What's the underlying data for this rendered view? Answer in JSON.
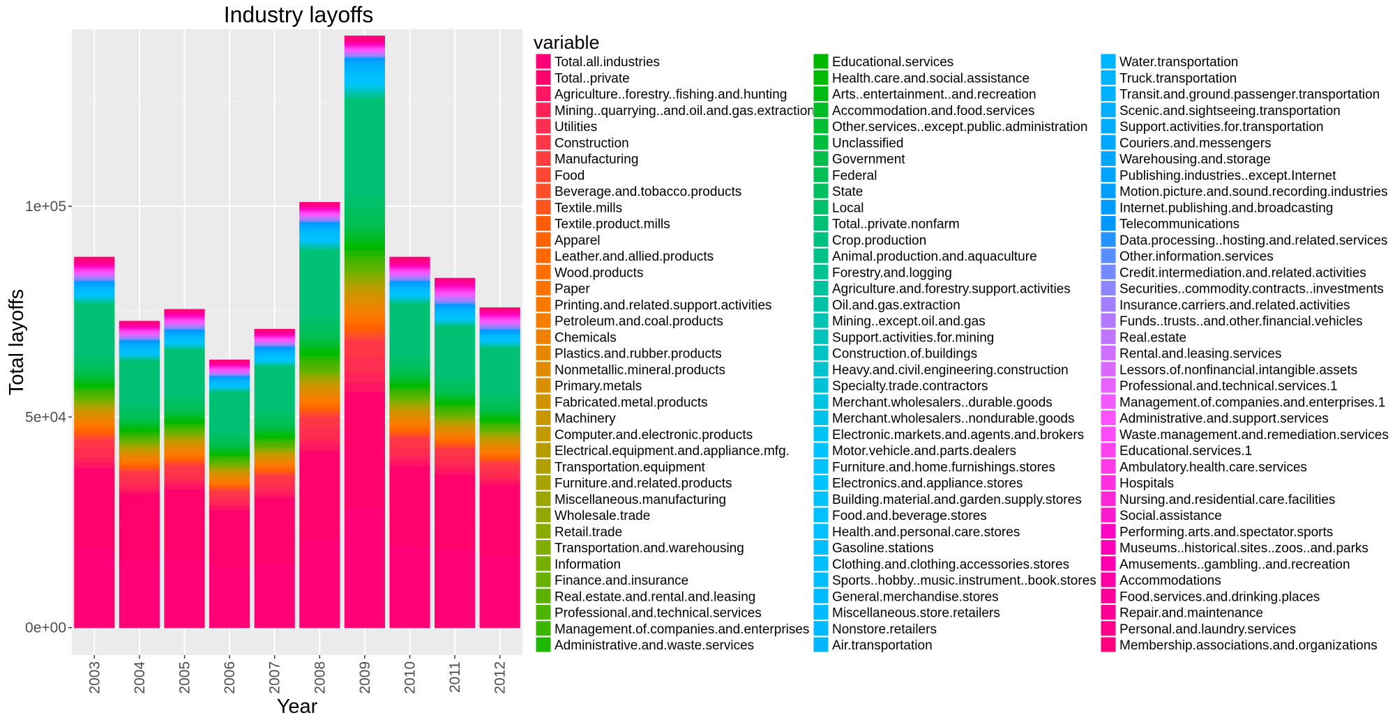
{
  "chart_data": {
    "type": "bar",
    "stacked": true,
    "title": "Industry layoffs",
    "xlabel": "Year",
    "ylabel": "Total layoffs",
    "ylim": [
      -6500,
      142000
    ],
    "yticks": [
      0,
      50000,
      100000
    ],
    "ytick_labels": [
      "0e+00",
      "5e+04",
      "1e+05"
    ],
    "grid": true,
    "legend_position": "right",
    "legend_title": "variable",
    "categories": [
      "2003",
      "2004",
      "2005",
      "2006",
      "2007",
      "2008",
      "2009",
      "2010",
      "2011",
      "2012"
    ],
    "totals": [
      91500,
      76800,
      79600,
      67600,
      75400,
      103000,
      135500,
      93500,
      88500,
      82000
    ],
    "series_names": [
      "Total.all.industries",
      "Total..private",
      "Agriculture..forestry..fishing.and.hunting",
      "Mining..quarrying..and.oil.and.gas.extraction",
      "Utilities",
      "Construction",
      "Manufacturing",
      "Food",
      "Beverage.and.tobacco.products",
      "Textile.mills",
      "Textile.product.mills",
      "Apparel",
      "Leather.and.allied.products",
      "Wood.products",
      "Paper",
      "Printing.and.related.support.activities",
      "Petroleum.and.coal.products",
      "Chemicals",
      "Plastics.and.rubber.products",
      "Nonmetallic.mineral.products",
      "Primary.metals",
      "Fabricated.metal.products",
      "Machinery",
      "Computer.and.electronic.products",
      "Electrical.equipment.and.appliance.mfg.",
      "Transportation.equipment",
      "Furniture.and.related.products",
      "Miscellaneous.manufacturing",
      "Wholesale.trade",
      "Retail.trade",
      "Transportation.and.warehousing",
      "Information",
      "Finance.and.insurance",
      "Real.estate.and.rental.and.leasing",
      "Professional.and.technical.services",
      "Management.of.companies.and.enterprises",
      "Administrative.and.waste.services",
      "Educational.services",
      "Health.care.and.social.assistance",
      "Arts..entertainment..and.recreation",
      "Accommodation.and.food.services",
      "Other.services..except.public.administration",
      "Unclassified",
      "Government",
      "Federal",
      "State",
      "Local",
      "Total..private.nonfarm",
      "Crop.production",
      "Animal.production.and.aquaculture",
      "Forestry.and.logging",
      "Agriculture.and.forestry.support.activities",
      "Oil.and.gas.extraction",
      "Mining..except.oil.and.gas",
      "Support.activities.for.mining",
      "Construction.of.buildings",
      "Heavy.and.civil.engineering.construction",
      "Specialty.trade.contractors",
      "Merchant.wholesalers..durable.goods",
      "Merchant.wholesalers..nondurable.goods",
      "Electronic.markets.and.agents.and.brokers",
      "Motor.vehicle.and.parts.dealers",
      "Furniture.and.home.furnishings.stores",
      "Electronics.and.appliance.stores",
      "Building.material.and.garden.supply.stores",
      "Food.and.beverage.stores",
      "Health.and.personal.care.stores",
      "Gasoline.stations",
      "Clothing.and.clothing.accessories.stores",
      "Sports..hobby..music.instrument..book.stores",
      "General.merchandise.stores",
      "Miscellaneous.store.retailers",
      "Nonstore.retailers",
      "Air.transportation",
      "Water.transportation",
      "Truck.transportation",
      "Transit.and.ground.passenger.transportation",
      "Scenic.and.sightseeing.transportation",
      "Support.activities.for.transportation",
      "Couriers.and.messengers",
      "Warehousing.and.storage",
      "Publishing.industries..except.Internet",
      "Motion.picture.and.sound.recording.industries",
      "Internet.publishing.and.broadcasting",
      "Telecommunications",
      "Data.processing..hosting.and.related.services",
      "Other.information.services",
      "Credit.intermediation.and.related.activities",
      "Securities..commodity.contracts..investments",
      "Insurance.carriers.and.related.activities",
      "Funds..trusts..and.other.financial.vehicles",
      "Real.estate",
      "Rental.and.leasing.services",
      "Lessors.of.nonfinancial.intangible.assets",
      "Professional.and.technical.services.1",
      "Management.of.companies.and.enterprises.1",
      "Administrative.and.support.services",
      "Waste.management.and.remediation.services",
      "Educational.services.1",
      "Ambulatory.health.care.services",
      "Hospitals",
      "Nursing.and.residential.care.facilities",
      "Social.assistance",
      "Performing.arts.and.spectator.sports",
      "Museums..historical.sites..zoos..and.parks",
      "Amusements..gambling..and.recreation",
      "Accommodations",
      "Food.services.and.drinking.places",
      "Repair.and.maintenance",
      "Personal.and.laundry.services",
      "Membership.associations.and.organizations"
    ],
    "stack_profile_note": "",
    "stack_bands": [
      {
        "series": "Total.all.industries",
        "values": [
          19000,
          16000,
          16500,
          14500,
          15500,
          21000,
          28500,
          19500,
          18500,
          17500
        ]
      },
      {
        "series": "Total..private",
        "values": [
          19000,
          16000,
          16500,
          13500,
          15500,
          21000,
          27500,
          19000,
          18000,
          16500
        ]
      },
      {
        "series": "Agriculture to Mining",
        "values": [
          2500,
          2000,
          2000,
          2000,
          2000,
          3000,
          4500,
          2500,
          2500,
          2000
        ]
      },
      {
        "series": "Utilities to Construction",
        "values": [
          4000,
          3000,
          3500,
          2500,
          3000,
          5000,
          7500,
          4000,
          3500,
          3000
        ]
      },
      {
        "series": "Manufacturing to Paper",
        "values": [
          3500,
          2500,
          2500,
          2000,
          2500,
          3500,
          5500,
          3000,
          2500,
          2500
        ]
      },
      {
        "series": "Printing to Primary.metals",
        "values": [
          3500,
          2500,
          3000,
          2500,
          2500,
          4000,
          6000,
          3500,
          3000,
          3000
        ]
      },
      {
        "series": "Fabricated.metal to Finance",
        "values": [
          3000,
          2500,
          2500,
          2000,
          2000,
          3500,
          5500,
          3000,
          2500,
          2500
        ]
      },
      {
        "series": "Real.estate to Administrative",
        "values": [
          2500,
          2000,
          2000,
          2000,
          2000,
          3500,
          4500,
          2500,
          2500,
          2000
        ]
      },
      {
        "series": "Educational to Government",
        "values": [
          3500,
          3000,
          3000,
          2500,
          3000,
          4500,
          6000,
          3500,
          3000,
          3000
        ]
      },
      {
        "series": "Federal to Local",
        "values": [
          4000,
          3500,
          3500,
          3000,
          3500,
          5000,
          7000,
          4000,
          3500,
          3500
        ]
      },
      {
        "series": "Total..private.nonfarm",
        "values": [
          12500,
          10500,
          11000,
          9500,
          10500,
          15500,
          23000,
          12500,
          12000,
          11000
        ]
      },
      {
        "series": "Crop to Clothing",
        "values": [
          3000,
          2500,
          2500,
          2000,
          2500,
          4000,
          6000,
          3000,
          3000,
          2500
        ]
      },
      {
        "series": "Sports to Data.processing",
        "values": [
          2000,
          2000,
          2000,
          1500,
          2000,
          2500,
          3500,
          2000,
          2000,
          1500
        ]
      },
      {
        "series": "Other.information to Personal",
        "values": [
          5000,
          4300,
          4600,
          3600,
          3900,
          4500,
          4500,
          5000,
          6000,
          5000
        ]
      },
      {
        "series": "Membership.associations.and.organizations",
        "values": [
          1000,
          500,
          500,
          500,
          500,
          500,
          1000,
          1000,
          500,
          500
        ]
      }
    ]
  }
}
